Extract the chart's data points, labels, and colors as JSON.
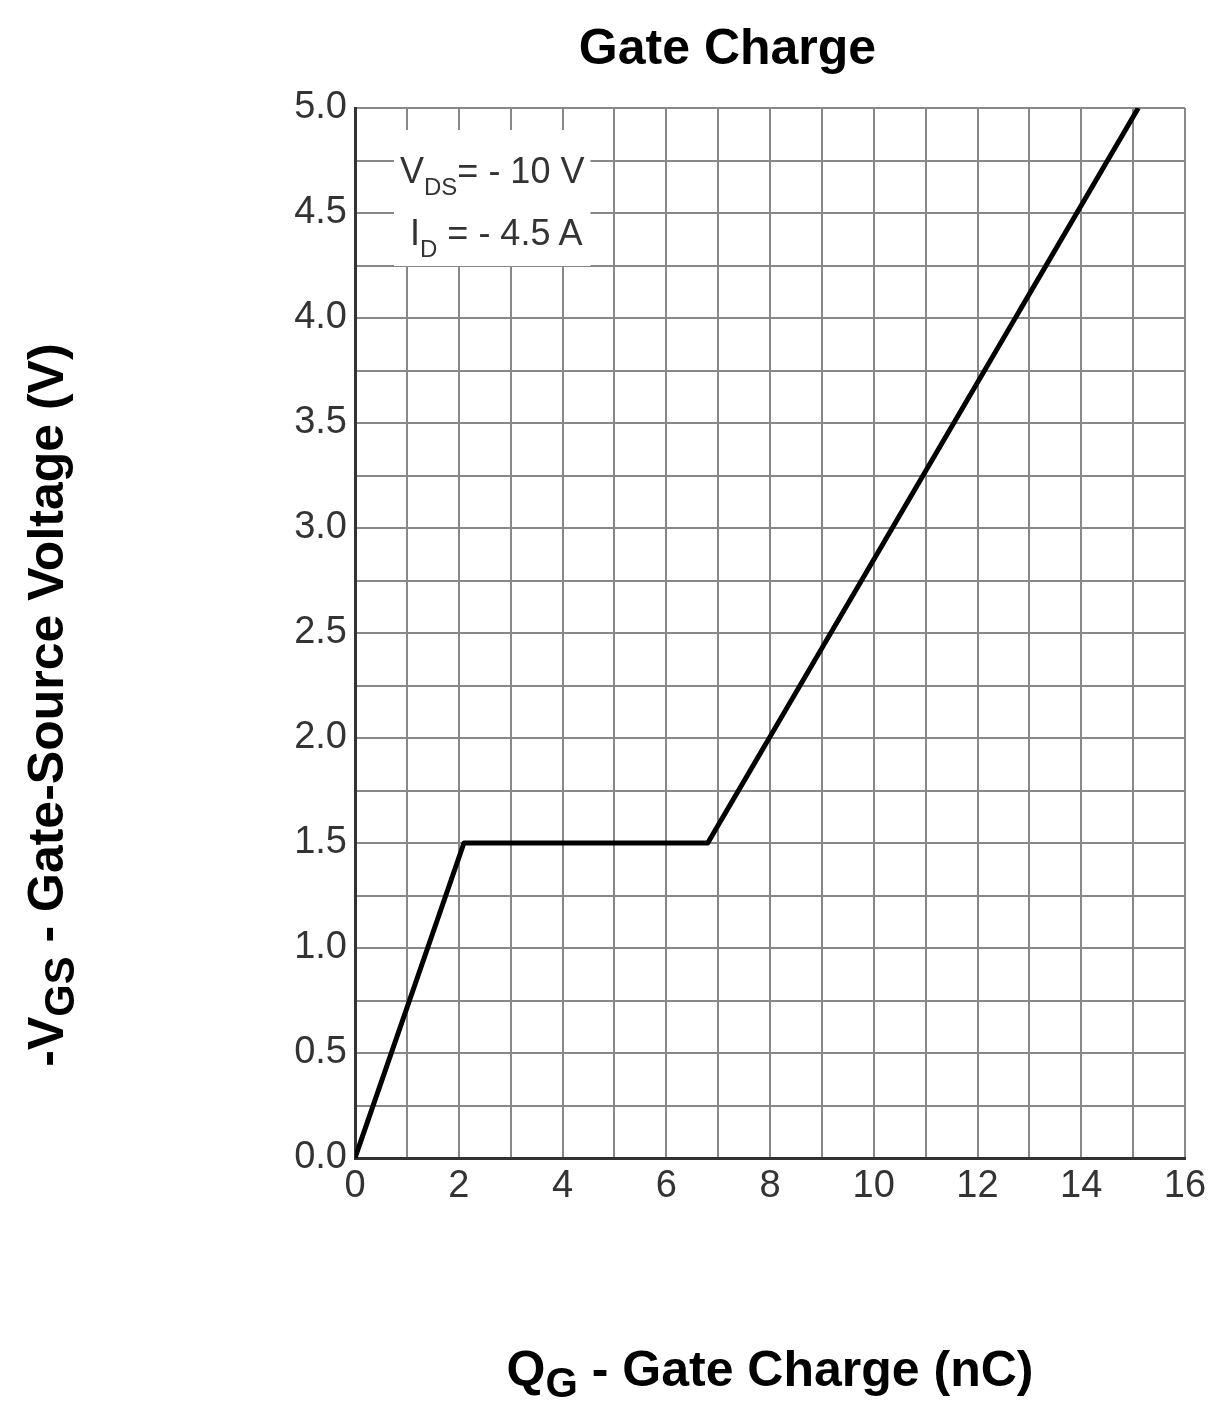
{
  "chart_data": {
    "type": "line",
    "title": "Gate Charge",
    "xlabel": "Q$_{G}$ - Gate Charge (nC)",
    "ylabel": "-V$_{GS}$ - Gate-Source Voltage (V)",
    "annotations": [
      "V$_{DS}$= - 10 V",
      "I$_{D}$ = - 4.5 A"
    ],
    "series": [
      {
        "color": "#000000",
        "x": [
          0,
          2.1,
          6.8,
          15.1
        ],
        "values": [
          0,
          1.5,
          1.5,
          5.0
        ]
      }
    ],
    "xlim": [
      0,
      16
    ],
    "ylim": [
      0,
      5.0
    ],
    "xticks": [
      0,
      {
        "value": 1,
        "label": null
      },
      2,
      {
        "value": 3,
        "label": null
      },
      4,
      {
        "value": 5,
        "label": null
      },
      6,
      {
        "value": 7,
        "label": null
      },
      8,
      {
        "value": 9,
        "label": null
      },
      10,
      {
        "value": 11,
        "label": null
      },
      12,
      {
        "value": 13,
        "label": null
      },
      14,
      {
        "value": 15,
        "label": null
      },
      16
    ],
    "yticks": [
      {
        "value": 0,
        "label": "0.0"
      },
      {
        "value": 0.25,
        "label": null
      },
      {
        "value": 0.5,
        "label": "0.5"
      },
      {
        "value": 0.75,
        "label": null
      },
      {
        "value": 1,
        "label": "1.0"
      },
      {
        "value": 1.25,
        "label": null
      },
      {
        "value": 1.5,
        "label": "1.5"
      },
      {
        "value": 1.75,
        "label": null
      },
      {
        "value": 2,
        "label": "2.0"
      },
      {
        "value": 2.25,
        "label": null
      },
      {
        "value": 2.5,
        "label": "2.5"
      },
      {
        "value": 2.75,
        "label": null
      },
      {
        "value": 3,
        "label": "3.0"
      },
      {
        "value": 3.25,
        "label": null
      },
      {
        "value": 3.5,
        "label": "3.5"
      },
      {
        "value": 3.75,
        "label": null
      },
      {
        "value": 4,
        "label": "4.0"
      },
      {
        "value": 4.25,
        "label": null
      },
      {
        "value": 4.5,
        "label": "4.5"
      },
      {
        "value": 4.75,
        "label": null
      },
      {
        "value": 5,
        "label": "5.0"
      }
    ],
    "grid": true,
    "marker": "none",
    "line_style": "solid"
  }
}
